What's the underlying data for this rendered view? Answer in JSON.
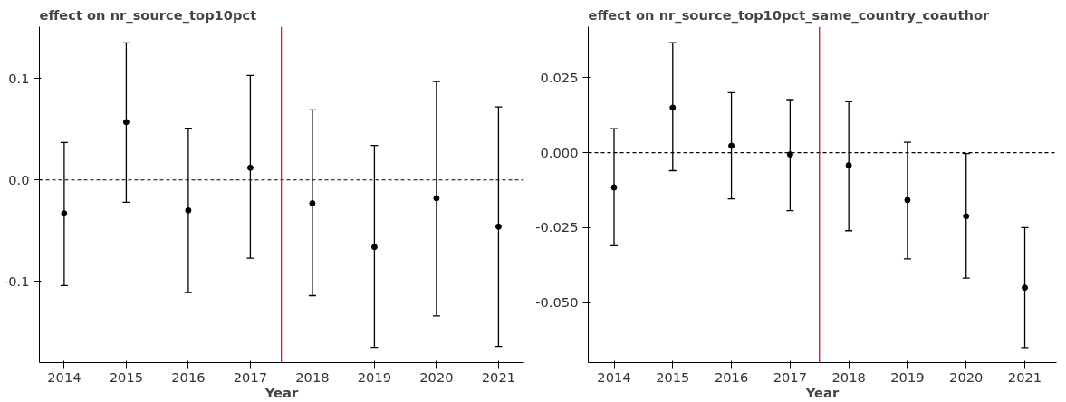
{
  "chart_data": [
    {
      "type": "scatter",
      "title": "effect on nr_source_top10pct",
      "xlabel": "Year",
      "x": [
        2014,
        2015,
        2016,
        2017,
        2018,
        2019,
        2020,
        2021
      ],
      "series": [
        {
          "color": "#000000",
          "values": [
            -0.033,
            0.057,
            -0.03,
            0.012,
            -0.023,
            -0.066,
            -0.018,
            -0.046
          ],
          "errors": [
            [
              -0.104,
              0.037
            ],
            [
              -0.022,
              0.135
            ],
            [
              -0.111,
              0.051
            ],
            [
              -0.077,
              0.103
            ],
            [
              -0.114,
              0.069
            ],
            [
              -0.165,
              0.034
            ],
            [
              -0.134,
              0.097
            ],
            [
              -0.164,
              0.072
            ]
          ]
        }
      ],
      "xlim": [
        2013.6,
        2021.41
      ],
      "xticks": [
        2014,
        2015,
        2016,
        2017,
        2018,
        2019,
        2020,
        2021
      ],
      "ylim": [
        -0.18,
        0.151
      ],
      "yticks": [
        {
          "value": -0.1,
          "label": "-0.1"
        },
        {
          "value": 0,
          "label": "0.0"
        },
        {
          "value": 0.1,
          "label": "0.1"
        }
      ],
      "ref_lines": [
        {
          "axis": "y",
          "value": 0,
          "color": "#000000",
          "line_style": "dashed"
        },
        {
          "axis": "x",
          "value": 2017.5,
          "color": "#ff0000",
          "line_style": "solid"
        }
      ],
      "marker": "circle",
      "grid": false
    },
    {
      "type": "scatter",
      "title": "effect on nr_source_top10pct_same_country_coauthor",
      "xlabel": "Year",
      "x": [
        2014,
        2015,
        2016,
        2017,
        2018,
        2019,
        2020,
        2021
      ],
      "series": [
        {
          "color": "#000000",
          "values": [
            -0.0116,
            0.015,
            0.0023,
            -0.0006,
            -0.0042,
            -0.0158,
            -0.0212,
            -0.045
          ],
          "errors": [
            [
              -0.031,
              0.008
            ],
            [
              -0.006,
              0.0367
            ],
            [
              -0.0154,
              0.02
            ],
            [
              -0.0193,
              0.0177
            ],
            [
              -0.026,
              0.017
            ],
            [
              -0.0354,
              0.0035
            ],
            [
              -0.0418,
              -0.0003
            ],
            [
              -0.065,
              -0.025
            ]
          ]
        }
      ],
      "xlim": [
        2013.56,
        2021.54
      ],
      "xticks": [
        2014,
        2015,
        2016,
        2017,
        2018,
        2019,
        2020,
        2021
      ],
      "ylim": [
        -0.07,
        0.042
      ],
      "yticks": [
        {
          "value": -0.05,
          "label": "-0.050"
        },
        {
          "value": -0.025,
          "label": "-0.025"
        },
        {
          "value": 0,
          "label": "0.000"
        },
        {
          "value": 0.025,
          "label": "0.025"
        }
      ],
      "ref_lines": [
        {
          "axis": "y",
          "value": 0,
          "color": "#000000",
          "line_style": "dashed"
        },
        {
          "axis": "x",
          "value": 2017.5,
          "color": "#cc0000",
          "line_style": "solid"
        }
      ],
      "marker": "circle",
      "grid": false
    }
  ]
}
